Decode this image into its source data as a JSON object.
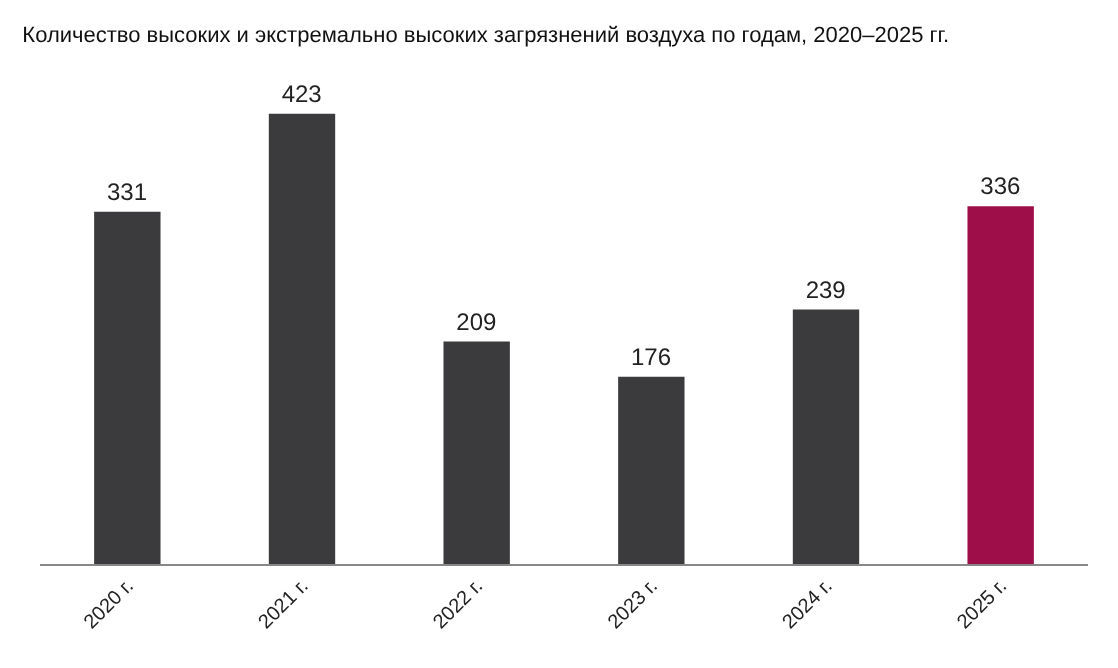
{
  "chart_data": {
    "type": "bar",
    "title": "Количество высоких и экстремально высоких загрязнений воздуха по годам, 2020–2025 гг.",
    "categories": [
      "2020 г.",
      "2021 г.",
      "2022 г.",
      "2023 г.",
      "2024 г.",
      "2025 г."
    ],
    "values": [
      331,
      423,
      209,
      176,
      239,
      336
    ],
    "colors": [
      "#3b3b3d",
      "#3b3b3d",
      "#3b3b3d",
      "#3b3b3d",
      "#3b3b3d",
      "#9e0f4a"
    ],
    "data_labels": true,
    "tick_labels": "x"
  }
}
